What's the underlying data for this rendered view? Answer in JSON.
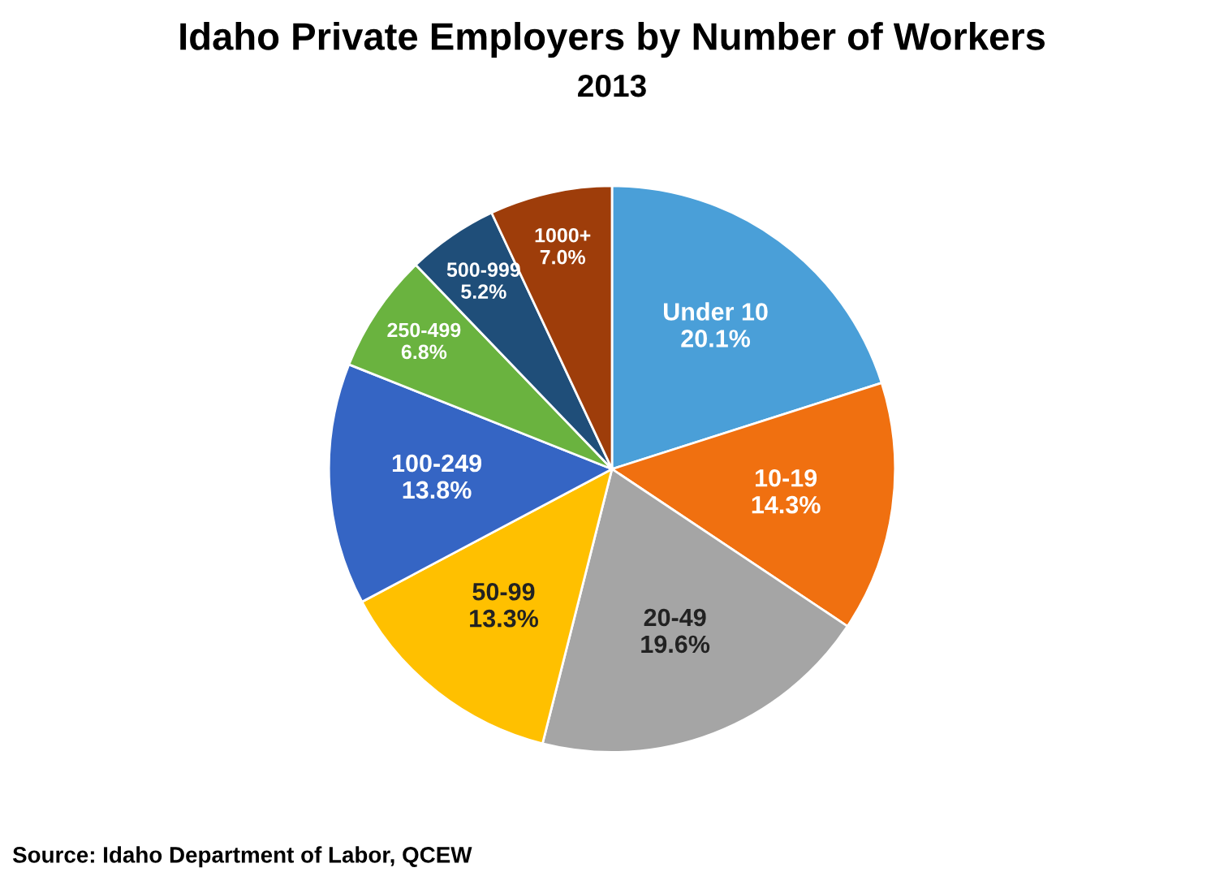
{
  "chart_data": {
    "type": "pie",
    "title": "Idaho Private Employers by Number of Workers",
    "subtitle": "2013",
    "categories": [
      "Under 10",
      "10-19",
      "20-49",
      "50-99",
      "100-249",
      "250-499",
      "500-999",
      "1000+"
    ],
    "values": [
      20.1,
      14.3,
      19.6,
      13.3,
      13.8,
      6.8,
      5.2,
      7.0
    ],
    "value_labels": [
      "20.1%",
      "14.3%",
      "19.6%",
      "13.3%",
      "13.8%",
      "6.8%",
      "5.2%",
      "7.0%"
    ],
    "colors": [
      "#4a9fd8",
      "#f07010",
      "#a5a5a5",
      "#ffc000",
      "#3565c4",
      "#6ab33f",
      "#1f4e79",
      "#9e3d0a"
    ],
    "annotations": [
      "Source: Idaho Department of Labor, QCEW"
    ]
  }
}
